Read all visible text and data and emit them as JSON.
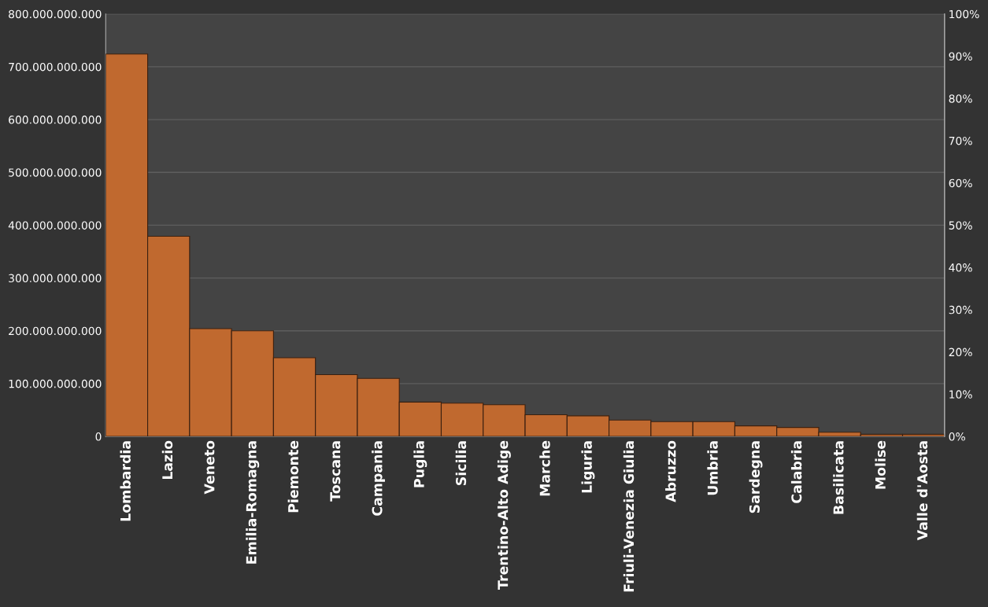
{
  "chart_data": {
    "type": "bar",
    "categories": [
      "Lombardia",
      "Lazio",
      "Veneto",
      "Emilia-Romagna",
      "Piemonte",
      "Toscana",
      "Campania",
      "Puglia",
      "Sicilia",
      "Trentino-Alto Adige",
      "Marche",
      "Liguria",
      "Friuli-Venezia Giulia",
      "Abruzzo",
      "Umbria",
      "Sardegna",
      "Calabria",
      "Basilicata",
      "Molise",
      "Valle d'Aosta"
    ],
    "series": [
      {
        "color": "#c0692f",
        "values": [
          724000000000,
          379000000000,
          204000000000,
          200000000000,
          149000000000,
          117000000000,
          110000000000,
          65000000000,
          63000000000,
          60000000000,
          41000000000,
          39000000000,
          31000000000,
          28000000000,
          28000000000,
          20000000000,
          17000000000,
          8000000000,
          4000000000,
          4000000000
        ]
      }
    ],
    "ylim": [
      0,
      800000000000
    ],
    "yticks": [
      0,
      {
        "value": 100000000000,
        "label": "100.000.000.000"
      },
      {
        "value": 200000000000,
        "label": "200.000.000.000"
      },
      {
        "value": 300000000000,
        "label": "300.000.000.000"
      },
      {
        "value": 400000000000,
        "label": "400.000.000.000"
      },
      {
        "value": 500000000000,
        "label": "500.000.000.000"
      },
      {
        "value": 600000000000,
        "label": "600.000.000.000"
      },
      {
        "value": 700000000000,
        "label": "700.000.000.000"
      },
      {
        "value": 800000000000,
        "label": "800.000.000.000"
      }
    ],
    "y2lim": [
      0,
      100
    ],
    "y2ticks": [
      {
        "value": 0,
        "label": "0%"
      },
      {
        "value": 10,
        "label": "10%"
      },
      {
        "value": 20,
        "label": "20%"
      },
      {
        "value": 30,
        "label": "30%"
      },
      {
        "value": 40,
        "label": "40%"
      },
      {
        "value": 50,
        "label": "50%"
      },
      {
        "value": 60,
        "label": "60%"
      },
      {
        "value": 70,
        "label": "70%"
      },
      {
        "value": 80,
        "label": "80%"
      },
      {
        "value": 90,
        "label": "90%"
      },
      {
        "value": 100,
        "label": "100%"
      }
    ],
    "grid": "y",
    "legend": false
  }
}
